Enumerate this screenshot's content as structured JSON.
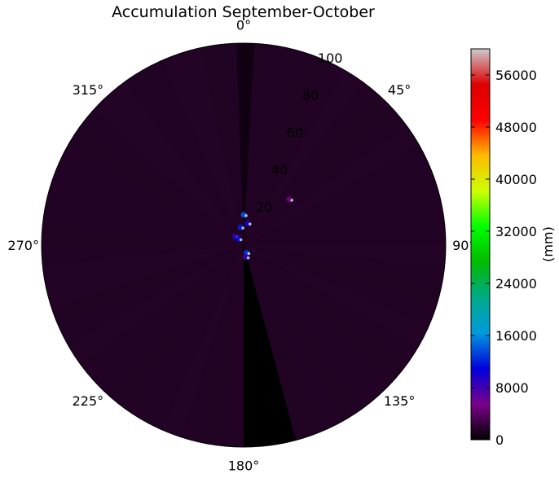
{
  "chart_data": {
    "type": "heatmap",
    "projection": "polar",
    "title": "Accumulation September-October",
    "angle_tick_labels": [
      "0°",
      "45°",
      "90°",
      "135°",
      "180°",
      "225°",
      "270°",
      "315°"
    ],
    "angle_direction": "clockwise",
    "angle_zero_location": "north",
    "radial_tick_labels": [
      "20",
      "40",
      "60",
      "80",
      "100"
    ],
    "rlim": [
      0,
      100
    ],
    "grid": false,
    "colorbar": {
      "label": "(mm)",
      "tick_labels": [
        "0",
        "8000",
        "16000",
        "24000",
        "32000",
        "40000",
        "48000",
        "56000"
      ],
      "range": [
        0,
        60000
      ],
      "colormap": "nipy_spectral",
      "position": "right"
    },
    "field": {
      "background_value": 1500,
      "sector_min_value": 0,
      "sector_min_angles_deg": [
        165,
        180
      ],
      "sector_min_r": [
        0,
        100
      ],
      "hotspots": [
        {
          "angle_deg": 0,
          "r": 15,
          "value": 14000
        },
        {
          "angle_deg": 350,
          "r": 9,
          "value": 12000
        },
        {
          "angle_deg": 10,
          "r": 11,
          "value": 10000
        },
        {
          "angle_deg": 315,
          "r": 6,
          "value": 9000
        },
        {
          "angle_deg": 320,
          "r": 4,
          "value": 11000
        },
        {
          "angle_deg": 160,
          "r": 4,
          "value": 13000
        },
        {
          "angle_deg": 170,
          "r": 6,
          "value": 8000
        },
        {
          "angle_deg": 45,
          "r": 32,
          "value": 5000
        }
      ]
    },
    "colors": {
      "colormap_stops": [
        "#000000",
        "#7a008a",
        "#0000dd",
        "#0099dd",
        "#00aa88",
        "#00bb00",
        "#00ff00",
        "#ccff00",
        "#ffbb00",
        "#ff0000",
        "#dd0000",
        "#cccccc"
      ],
      "background_field": "#1f0322",
      "min_field": "#000000"
    }
  }
}
